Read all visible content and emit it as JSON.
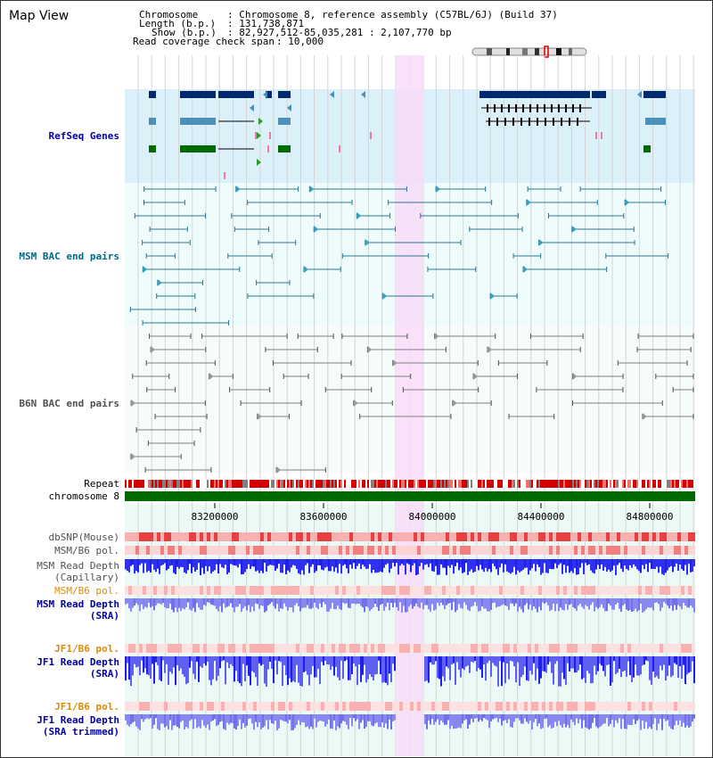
{
  "app": {
    "title": "Map View"
  },
  "info": {
    "chromosome_label": "Chromosome",
    "chromosome_value": ": Chromosome 8, reference assembly (C57BL/6J) (Build 37)",
    "length_label": "Length (b.p.)",
    "length_value": ": 131,738,871",
    "show_label": "Show (b.p.)",
    "show_value": ": 82,927,512-85,035,281 : 2,107,770 bp",
    "coverage_label": "Read coverage check span",
    "coverage_value": ": 10,000"
  },
  "tracks": {
    "refseq": "RefSeq Genes",
    "msm_bac": "MSM BAC end pairs",
    "b6n_bac": "B6N BAC end pairs",
    "repeat": "Repeat",
    "chromosome": "chromosome 8",
    "dbsnp": "dbSNP(Mouse)",
    "msm_b6_pol_1": "MSM/B6 pol.",
    "msm_read_depth_cap_1": "MSM Read Depth",
    "msm_read_depth_cap_2": "(Capillary)",
    "msm_b6_pol_2": "MSM/B6 pol.",
    "msm_read_depth_sra_1": "MSM Read Depth",
    "msm_read_depth_sra_2": "(SRA)",
    "jf1_b6_pol_1": "JF1/B6 pol.",
    "jf1_read_depth_sra_1": "JF1 Read Depth",
    "jf1_read_depth_sra_2": "(SRA)",
    "jf1_b6_pol_2": "JF1/B6 pol.",
    "jf1_read_depth_trim_1": "JF1 Read Depth",
    "jf1_read_depth_trim_2": "(SRA trimmed)"
  },
  "axis": {
    "ticks": [
      "83200000",
      "83600000",
      "84000000",
      "84400000",
      "84800000"
    ]
  },
  "colors": {
    "refseq_bg": "#dcf0fa",
    "bac_bg": "#eefcfc",
    "highlight": "#f8dcf8",
    "gene_dark": "#002a6e",
    "gene_mid": "#4a90b8",
    "gene_green": "#006a00",
    "msm_bac_line": "#2a7890",
    "b6n_bac_line": "#808080",
    "label_blue": "#0000a0",
    "label_teal": "#006a8a",
    "label_grey": "#505050",
    "label_orange": "#e08a00",
    "depth_blue": "#2020e8",
    "depth_light": "#8888f0"
  }
}
